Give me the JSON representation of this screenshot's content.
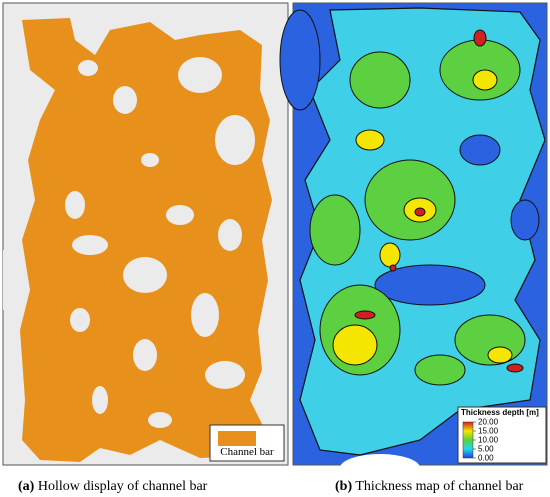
{
  "panels": [
    {
      "label": "(a)",
      "caption": "Hollow display of channel bar",
      "legend": "Channel bar"
    },
    {
      "label": "(b)",
      "caption": "Thickness map of channel bar",
      "colorbar": {
        "title": "Thickness depth [m]",
        "ticks": [
          {
            "value": 20,
            "label": "20.00"
          },
          {
            "value": 15,
            "label": "15.00"
          },
          {
            "value": 10,
            "label": "10.00"
          },
          {
            "value": 5,
            "label": "5.00"
          },
          {
            "value": 0,
            "label": "0.00"
          }
        ]
      }
    }
  ]
}
